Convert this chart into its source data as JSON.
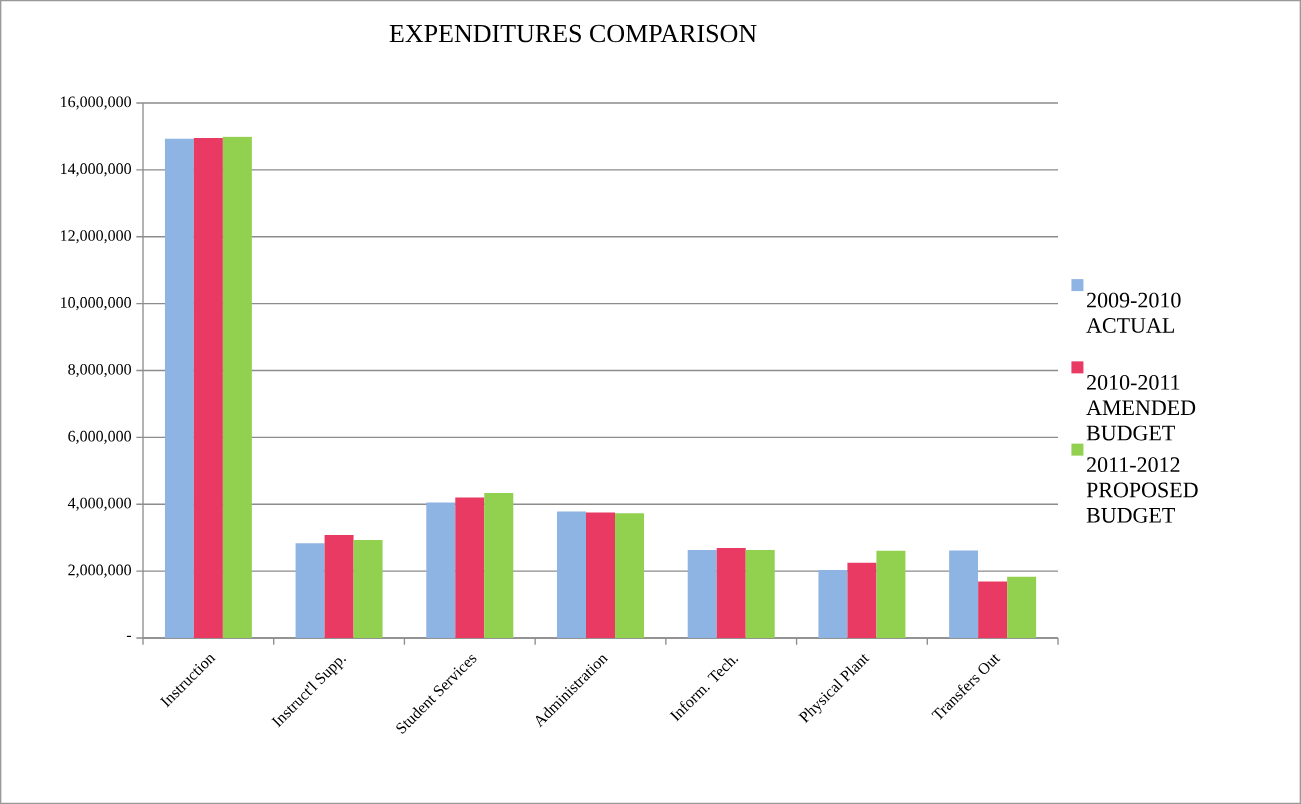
{
  "chart_data": {
    "type": "bar",
    "title": "EXPENDITURES COMPARISON",
    "categories": [
      "Instruction",
      "Instruct'l Supp.",
      "Student Services",
      "Administration",
      "Inform. Tech.",
      "Physical Plant",
      "Transfers Out"
    ],
    "series": [
      {
        "name": "2009-2010 ACTUAL",
        "color": "#8eb4e3",
        "values": [
          14930000,
          2830000,
          4050000,
          3780000,
          2630000,
          2030000,
          2620000
        ]
      },
      {
        "name": "2010-2011 AMENDED BUDGET",
        "color": "#e83a63",
        "values": [
          14950000,
          3080000,
          4200000,
          3750000,
          2690000,
          2250000,
          1690000
        ]
      },
      {
        "name": "2011-2012 PROPOSED BUDGET",
        "color": "#92d050",
        "values": [
          14990000,
          2930000,
          4340000,
          3730000,
          2630000,
          2610000,
          1830000
        ]
      }
    ],
    "ylim": [
      0,
      16000000
    ],
    "yticks": [
      {
        "value": 0,
        "label": "-"
      },
      {
        "value": 2000000,
        "label": "2,000,000"
      },
      {
        "value": 4000000,
        "label": "4,000,000"
      },
      {
        "value": 6000000,
        "label": "6,000,000"
      },
      {
        "value": 8000000,
        "label": "8,000,000"
      },
      {
        "value": 10000000,
        "label": "10,000,000"
      },
      {
        "value": 12000000,
        "label": "12,000,000"
      },
      {
        "value": 14000000,
        "label": "14,000,000"
      },
      {
        "value": 16000000,
        "label": "16,000,000"
      }
    ],
    "grid": "y",
    "legend": "right"
  }
}
